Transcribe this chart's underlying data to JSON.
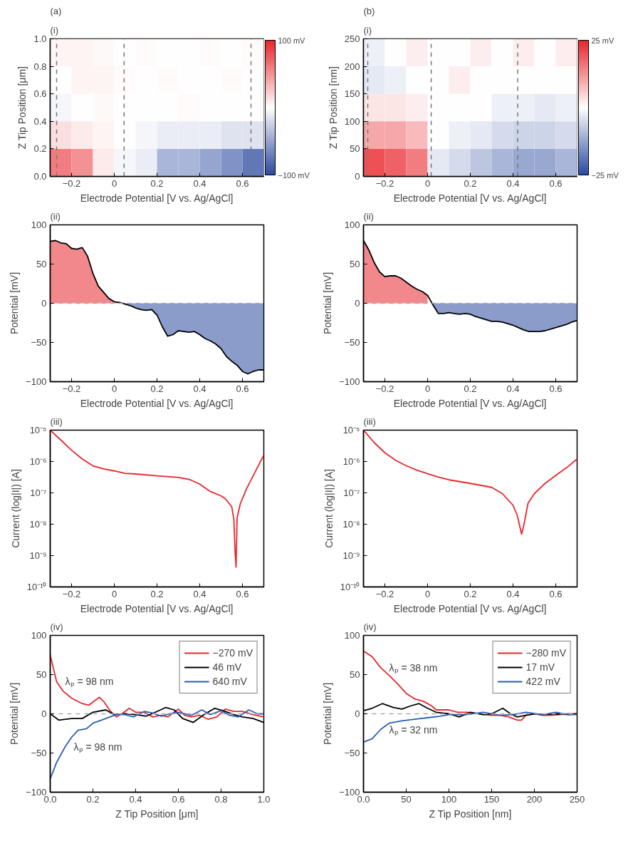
{
  "chart_data": [
    {
      "type": "heatmap",
      "title": "(a)",
      "subtitle": "(i)",
      "xlabel": "Electrode Potential [V vs. Ag/AgCl]",
      "ylabel": "Z Tip Position [μm]",
      "x": [
        -0.25,
        -0.15,
        -0.05,
        0.05,
        0.15,
        0.25,
        0.35,
        0.45,
        0.55,
        0.65
      ],
      "y": [
        0.9,
        0.7,
        0.5,
        0.3,
        0.1
      ],
      "cells": [
        [
          5,
          5,
          3,
          0,
          2,
          0,
          0,
          2,
          0,
          2
        ],
        [
          0,
          5,
          5,
          2,
          0,
          2,
          0,
          0,
          2,
          0
        ],
        [
          -5,
          0,
          3,
          0,
          0,
          0,
          2,
          0,
          0,
          0
        ],
        [
          15,
          10,
          5,
          0,
          -5,
          -10,
          -10,
          -10,
          -15,
          -15
        ],
        [
          60,
          50,
          10,
          -5,
          -10,
          -40,
          -40,
          -50,
          -60,
          -75
        ]
      ],
      "colors": [
        "#2b4ba0",
        "#ffffff",
        "#e8262b"
      ],
      "clim": [
        -100,
        100
      ],
      "cticks": [
        {
          "value": -100,
          "label": "−100 mV"
        },
        {
          "value": 100,
          "label": "100 mV"
        }
      ],
      "xlim": [
        -0.3,
        0.7
      ],
      "ylim": [
        0,
        1
      ],
      "xticks": [
        {
          "value": -0.2,
          "label": "−0.2"
        },
        0,
        0.2,
        0.4,
        0.6
      ],
      "yticks": [
        {
          "value": 0,
          "label": "0.0"
        },
        0.2,
        0.4,
        0.6,
        0.8,
        {
          "value": 1,
          "label": "1.0"
        }
      ],
      "ref_lines": [
        {
          "axis": "x",
          "value": -0.27,
          "color": "#777777",
          "line_style": "dashed"
        },
        {
          "axis": "x",
          "value": 0.046,
          "color": "#777777",
          "line_style": "dashed"
        },
        {
          "axis": "x",
          "value": 0.64,
          "color": "#777777",
          "line_style": "dashed"
        }
      ],
      "grid": false
    },
    {
      "type": "heatmap",
      "title": "(b)",
      "subtitle": "(i)",
      "xlabel": "Electrode Potential [V vs. Ag/AgCl]",
      "ylabel": "Z Tip Position [nm]",
      "x": [
        -0.25,
        -0.15,
        -0.05,
        0.05,
        0.15,
        0.25,
        0.35,
        0.45,
        0.55,
        0.65
      ],
      "y": [
        225,
        175,
        125,
        75,
        25
      ],
      "cells": [
        [
          -2,
          0,
          2,
          0,
          0,
          2,
          0,
          2,
          0,
          2
        ],
        [
          -3,
          -2,
          0,
          0,
          2,
          0,
          0,
          0,
          0,
          0
        ],
        [
          3,
          3,
          2,
          0,
          0,
          0,
          -2,
          -2,
          -3,
          -2
        ],
        [
          10,
          10,
          8,
          0,
          -2,
          -3,
          -5,
          -6,
          -6,
          -5
        ],
        [
          20,
          18,
          15,
          -3,
          -5,
          -8,
          -10,
          -12,
          -12,
          -10
        ]
      ],
      "colors": [
        "#2b4ba0",
        "#ffffff",
        "#e8262b"
      ],
      "clim": [
        -25,
        25
      ],
      "cticks": [
        {
          "value": -25,
          "label": "−25 mV"
        },
        {
          "value": 25,
          "label": "25 mV"
        }
      ],
      "xlim": [
        -0.3,
        0.7
      ],
      "ylim": [
        0,
        250
      ],
      "xticks": [
        {
          "value": -0.2,
          "label": "−0.2"
        },
        0,
        0.2,
        0.4,
        0.6
      ],
      "yticks": [
        0,
        50,
        100,
        150,
        200,
        250
      ],
      "ref_lines": [
        {
          "axis": "x",
          "value": -0.28,
          "color": "#777777",
          "line_style": "dashed"
        },
        {
          "axis": "x",
          "value": 0.017,
          "color": "#777777",
          "line_style": "dashed"
        },
        {
          "axis": "x",
          "value": 0.422,
          "color": "#777777",
          "line_style": "dashed"
        }
      ],
      "grid": false
    },
    {
      "type": "area",
      "title": "(ii)",
      "xlabel": "Electrode Potential [V vs. Ag/AgCl]",
      "ylabel": "Potential [mV]",
      "x": [
        -0.3,
        -0.275,
        -0.25,
        -0.225,
        -0.2,
        -0.175,
        -0.15,
        -0.125,
        -0.1,
        -0.075,
        -0.05,
        -0.025,
        0,
        0.025,
        0.05,
        0.075,
        0.1,
        0.125,
        0.15,
        0.175,
        0.2,
        0.225,
        0.25,
        0.275,
        0.3,
        0.325,
        0.35,
        0.375,
        0.4,
        0.425,
        0.45,
        0.475,
        0.5,
        0.525,
        0.55,
        0.575,
        0.6,
        0.625,
        0.65,
        0.675,
        0.7
      ],
      "series": [
        {
          "type": "area",
          "color": "#e8262b",
          "x": [
            -0.3,
            -0.275,
            -0.25,
            -0.225,
            -0.2,
            -0.175,
            -0.15,
            -0.125,
            -0.1,
            -0.075,
            -0.05,
            -0.025,
            0,
            0.025
          ],
          "values": [
            79,
            80,
            77,
            76,
            70,
            69,
            71,
            60,
            38,
            22,
            14,
            6,
            2,
            1
          ]
        },
        {
          "type": "area",
          "color": "#2b4ba0",
          "x": [
            0.05,
            0.075,
            0.1,
            0.125,
            0.15,
            0.175,
            0.2,
            0.225,
            0.25,
            0.275,
            0.3,
            0.325,
            0.35,
            0.375,
            0.4,
            0.425,
            0.45,
            0.475,
            0.5,
            0.525,
            0.55,
            0.575,
            0.6,
            0.625,
            0.65,
            0.675,
            0.7
          ],
          "values": [
            -1,
            -3,
            -6,
            -8,
            -9,
            -8,
            -15,
            -30,
            -42,
            -40,
            -35,
            -36,
            -37,
            -36,
            -40,
            -45,
            -48,
            -52,
            -58,
            -68,
            -74,
            -79,
            -87,
            -90,
            -87,
            -85,
            -85
          ]
        },
        {
          "type": "line",
          "color": "#000000",
          "values": [
            79,
            80,
            77,
            76,
            70,
            69,
            71,
            60,
            38,
            22,
            14,
            6,
            2,
            1,
            -1,
            -3,
            -6,
            -8,
            -9,
            -8,
            -15,
            -30,
            -42,
            -40,
            -35,
            -36,
            -37,
            -36,
            -40,
            -45,
            -48,
            -52,
            -58,
            -68,
            -74,
            -79,
            -87,
            -90,
            -87,
            -85,
            -85
          ]
        }
      ],
      "xlim": [
        -0.3,
        0.7
      ],
      "ylim": [
        -100,
        100
      ],
      "xticks": [
        {
          "value": -0.2,
          "label": "−0.2"
        },
        0,
        0.2,
        0.4,
        0.6
      ],
      "yticks": [
        {
          "value": -100,
          "label": "−100"
        },
        {
          "value": -50,
          "label": "−50"
        },
        0,
        50,
        100
      ],
      "ref_lines": [
        {
          "axis": "y",
          "value": 0,
          "line_style": "dashed"
        }
      ],
      "grid": false
    },
    {
      "type": "area",
      "title": "(ii)",
      "xlabel": "Electrode Potential [V vs. Ag/AgCl]",
      "ylabel": "Potential [mV]",
      "x": [
        -0.3,
        -0.275,
        -0.25,
        -0.225,
        -0.2,
        -0.175,
        -0.15,
        -0.125,
        -0.1,
        -0.075,
        -0.05,
        -0.025,
        0,
        0.025,
        0.05,
        0.075,
        0.1,
        0.125,
        0.15,
        0.175,
        0.2,
        0.225,
        0.25,
        0.275,
        0.3,
        0.325,
        0.35,
        0.375,
        0.4,
        0.425,
        0.45,
        0.475,
        0.5,
        0.525,
        0.55,
        0.575,
        0.6,
        0.625,
        0.65,
        0.675,
        0.7
      ],
      "series": [
        {
          "type": "area",
          "color": "#e8262b",
          "x": [
            -0.3,
            -0.275,
            -0.25,
            -0.225,
            -0.2,
            -0.175,
            -0.15,
            -0.125,
            -0.1,
            -0.075,
            -0.05,
            -0.025,
            0
          ],
          "values": [
            80,
            68,
            52,
            40,
            34,
            35,
            35,
            32,
            27,
            22,
            18,
            15,
            10
          ]
        },
        {
          "type": "area",
          "color": "#2b4ba0",
          "x": [
            0.025,
            0.05,
            0.075,
            0.1,
            0.125,
            0.15,
            0.175,
            0.2,
            0.225,
            0.25,
            0.275,
            0.3,
            0.325,
            0.35,
            0.375,
            0.4,
            0.425,
            0.45,
            0.475,
            0.5,
            0.525,
            0.55,
            0.575,
            0.6,
            0.625,
            0.65,
            0.675,
            0.7
          ],
          "values": [
            -2,
            -13,
            -13,
            -12,
            -13,
            -14,
            -13,
            -14,
            -17,
            -19,
            -21,
            -23,
            -23,
            -24,
            -26,
            -28,
            -31,
            -34,
            -36,
            -36,
            -36,
            -35,
            -33,
            -31,
            -29,
            -27,
            -24,
            -22
          ]
        },
        {
          "type": "line",
          "color": "#000000",
          "values": [
            80,
            68,
            52,
            40,
            34,
            35,
            35,
            32,
            27,
            22,
            18,
            15,
            10,
            -2,
            -13,
            -13,
            -12,
            -13,
            -14,
            -13,
            -14,
            -17,
            -19,
            -21,
            -23,
            -23,
            -24,
            -26,
            -28,
            -31,
            -34,
            -36,
            -36,
            -36,
            -35,
            -33,
            -31,
            -29,
            -27,
            -24,
            -22
          ]
        }
      ],
      "xlim": [
        -0.3,
        0.7
      ],
      "ylim": [
        -100,
        100
      ],
      "xticks": [
        {
          "value": -0.2,
          "label": "−0.2"
        },
        0,
        0.2,
        0.4,
        0.6
      ],
      "yticks": [
        {
          "value": -100,
          "label": "−100"
        },
        {
          "value": -50,
          "label": "−50"
        },
        0,
        50,
        100
      ],
      "ref_lines": [
        {
          "axis": "y",
          "value": 0,
          "line_style": "dashed"
        }
      ],
      "grid": false
    },
    {
      "type": "line",
      "title": "(iii)",
      "xlabel": "Electrode Potential [V vs. Ag/AgCl]",
      "ylabel": "Current (log|I|) [A]",
      "log": "y",
      "x": [
        -0.3,
        -0.25,
        -0.2,
        -0.15,
        -0.1,
        -0.05,
        0,
        0.05,
        0.1,
        0.2,
        0.3,
        0.35,
        0.4,
        0.45,
        0.5,
        0.52,
        0.55,
        0.56,
        0.565,
        0.57,
        0.575,
        0.59,
        0.62,
        0.65,
        0.7
      ],
      "series": [
        {
          "color": "#e8262b",
          "values": [
            1e-05,
            4.8e-06,
            2.3e-06,
            1.2e-06,
            7.3e-07,
            5.8e-07,
            5e-07,
            4.2e-07,
            4e-07,
            3.5e-07,
            3.1e-07,
            2.7e-07,
            1.9e-07,
            1.1e-07,
            8e-08,
            6.5e-08,
            3.6e-08,
            1.4e-08,
            1.6e-09,
            4.3e-10,
            1.6e-08,
            4.5e-08,
            1.4e-07,
            3.5e-07,
            1.6e-06
          ]
        }
      ],
      "xlim": [
        -0.3,
        0.7
      ],
      "ylim": [
        1e-10,
        1e-05
      ],
      "xticks": [
        {
          "value": -0.2,
          "label": "−0.2"
        },
        0,
        0.2,
        0.4,
        0.6
      ],
      "yticks": [
        {
          "value": 1e-10,
          "label": "10⁻¹⁰"
        },
        {
          "value": 1e-09,
          "label": "10⁻⁹"
        },
        {
          "value": 1e-08,
          "label": "10⁻⁸"
        },
        {
          "value": 1e-07,
          "label": "10⁻⁷"
        },
        {
          "value": 1e-06,
          "label": "10⁻⁶"
        },
        {
          "value": 1e-05,
          "label": "10⁻⁵"
        }
      ],
      "grid": false
    },
    {
      "type": "line",
      "title": "(iii)",
      "xlabel": "Electrode Potential [V vs. Ag/AgCl]",
      "ylabel": "Current (log|I|) [A]",
      "log": "y",
      "x": [
        -0.3,
        -0.25,
        -0.2,
        -0.15,
        -0.1,
        -0.05,
        0,
        0.05,
        0.1,
        0.2,
        0.3,
        0.35,
        0.4,
        0.42,
        0.44,
        0.45,
        0.47,
        0.5,
        0.55,
        0.6,
        0.65,
        0.7
      ],
      "series": [
        {
          "color": "#e8262b",
          "values": [
            1e-05,
            4e-06,
            1.9e-06,
            1.1e-06,
            7.3e-07,
            5.3e-07,
            4.1e-07,
            3.2e-07,
            2.6e-07,
            2e-07,
            1.5e-07,
            9.5e-08,
            4e-08,
            1.9e-08,
            4.8e-09,
            9e-09,
            4.6e-08,
            9.5e-08,
            2e-07,
            3.6e-07,
            6.3e-07,
            1.2e-06
          ]
        }
      ],
      "xlim": [
        -0.3,
        0.7
      ],
      "ylim": [
        1e-10,
        1e-05
      ],
      "xticks": [
        {
          "value": -0.2,
          "label": "−0.2"
        },
        0,
        0.2,
        0.4,
        0.6
      ],
      "yticks": [
        {
          "value": 1e-10,
          "label": "10⁻¹⁰"
        },
        {
          "value": 1e-09,
          "label": "10⁻⁹"
        },
        {
          "value": 1e-08,
          "label": "10⁻⁸"
        },
        {
          "value": 1e-07,
          "label": "10⁻⁷"
        },
        {
          "value": 1e-06,
          "label": "10⁻⁶"
        },
        {
          "value": 1e-05,
          "label": "10⁻⁵"
        }
      ],
      "grid": false
    },
    {
      "type": "line",
      "title": "(iv)",
      "xlabel": "Z Tip Position [μm]",
      "ylabel": "Potential [mV]",
      "legend": "top right",
      "series": [
        {
          "name": "−270 mV",
          "color": "#e8262b",
          "x": [
            0,
            0.03,
            0.06,
            0.1,
            0.15,
            0.18,
            0.21,
            0.23,
            0.25,
            0.28,
            0.31,
            0.34,
            0.37,
            0.4,
            0.44,
            0.48,
            0.52,
            0.55,
            0.6,
            0.63,
            0.66,
            0.7,
            0.74,
            0.78,
            0.82,
            0.86,
            0.9,
            0.95,
            1.0
          ],
          "values": [
            75,
            41,
            29,
            20,
            13,
            11,
            17,
            21,
            16,
            4,
            -4,
            1,
            7,
            2,
            2,
            -4,
            -2,
            -4,
            6,
            -2,
            -4,
            -2,
            -7,
            -4,
            6,
            3,
            3,
            -1,
            -4
          ]
        },
        {
          "name": "46 mV",
          "color": "#000000",
          "x": [
            0,
            0.04,
            0.1,
            0.15,
            0.2,
            0.26,
            0.3,
            0.35,
            0.4,
            0.45,
            0.5,
            0.54,
            0.58,
            0.62,
            0.67,
            0.72,
            0.77,
            0.81,
            0.86,
            0.9,
            0.95,
            1.0
          ],
          "values": [
            0,
            -8,
            -6,
            -6,
            2,
            5,
            -1,
            0,
            -1,
            -3,
            3,
            8,
            5,
            -6,
            -11,
            -1,
            7,
            4,
            -1,
            -4,
            -6,
            -11
          ]
        },
        {
          "name": "640 mV",
          "color": "#2b5fb5",
          "x": [
            0,
            0.03,
            0.07,
            0.1,
            0.13,
            0.17,
            0.2,
            0.24,
            0.28,
            0.31,
            0.35,
            0.39,
            0.44,
            0.48,
            0.52,
            0.56,
            0.6,
            0.66,
            0.71,
            0.75,
            0.8,
            0.84,
            0.88,
            0.93,
            0.97,
            1.0
          ],
          "values": [
            -83,
            -62,
            -42,
            -30,
            -21,
            -19,
            -12,
            -8,
            -4,
            -1,
            -1,
            -4,
            3,
            1,
            -3,
            0,
            2,
            -2,
            5,
            -1,
            4,
            -2,
            -4,
            5,
            0,
            0
          ]
        }
      ],
      "annotations": [
        {
          "text": "λₚ = 98 nm",
          "x": 0.03,
          "y": 41
        },
        {
          "text": "λₚ = 98 nm",
          "x": 0.07,
          "y": -42
        }
      ],
      "xlim": [
        0,
        1
      ],
      "ylim": [
        -100,
        100
      ],
      "xticks": [
        {
          "value": 0,
          "label": "0.0"
        },
        0.2,
        0.4,
        0.6,
        0.8,
        {
          "value": 1,
          "label": "1.0"
        }
      ],
      "yticks": [
        {
          "value": -100,
          "label": "−100"
        },
        {
          "value": -50,
          "label": "−50"
        },
        0,
        50,
        100
      ],
      "ref_lines": [
        {
          "axis": "y",
          "value": 0,
          "line_style": "dashed"
        }
      ],
      "grid": false
    },
    {
      "type": "line",
      "title": "(iv)",
      "xlabel": "Z Tip Position [nm]",
      "ylabel": "Potential [mV]",
      "legend": "top right",
      "series": [
        {
          "name": "−280 mV",
          "color": "#e8262b",
          "x": [
            0,
            10,
            20,
            30,
            40,
            50,
            60,
            70,
            80,
            85,
            100,
            110,
            120,
            130,
            140,
            150,
            160,
            170,
            180,
            185,
            190,
            200,
            210,
            220,
            230,
            240,
            250
          ],
          "values": [
            80,
            73,
            59,
            49,
            38,
            26,
            19,
            16,
            10,
            5,
            5,
            2,
            2,
            1,
            -1,
            -2,
            -2,
            -4,
            -8,
            -8,
            -2,
            0,
            -2,
            -2,
            -1,
            0,
            0
          ]
        },
        {
          "name": "17 mV",
          "color": "#000000",
          "x": [
            0,
            10,
            22,
            35,
            45,
            55,
            65,
            75,
            85,
            100,
            112,
            125,
            140,
            150,
            163,
            172,
            180,
            190,
            200,
            210,
            225,
            240,
            250
          ],
          "values": [
            4,
            7,
            13,
            8,
            6,
            10,
            13,
            7,
            2,
            0,
            -4,
            2,
            -1,
            0,
            7,
            0,
            -4,
            -2,
            0,
            -1,
            0,
            -1,
            0
          ]
        },
        {
          "name": "422 mV",
          "color": "#2b5fb5",
          "x": [
            0,
            10,
            20,
            30,
            45,
            60,
            75,
            90,
            100,
            120,
            140,
            160,
            175,
            190,
            210,
            225,
            240,
            250
          ],
          "values": [
            -36,
            -32,
            -20,
            -12,
            -9,
            -7,
            -5,
            -3,
            -1,
            -1,
            2,
            -2,
            -1,
            2,
            -1,
            2,
            -1,
            -1
          ]
        }
      ],
      "annotations": [
        {
          "text": "λₚ = 38 nm",
          "x": 20,
          "y": 59
        },
        {
          "text": "λₚ = 32 nm",
          "x": 20,
          "y": -20
        }
      ],
      "xlim": [
        0,
        250
      ],
      "ylim": [
        -100,
        100
      ],
      "xticks": [
        {
          "value": 0,
          "label": "0.0"
        },
        50,
        100,
        150,
        200,
        250
      ],
      "yticks": [
        {
          "value": -100,
          "label": "−100"
        },
        {
          "value": -50,
          "label": "−50"
        },
        0,
        50,
        100
      ],
      "ref_lines": [
        {
          "axis": "y",
          "value": 0,
          "line_style": "dashed"
        }
      ],
      "grid": false
    }
  ]
}
